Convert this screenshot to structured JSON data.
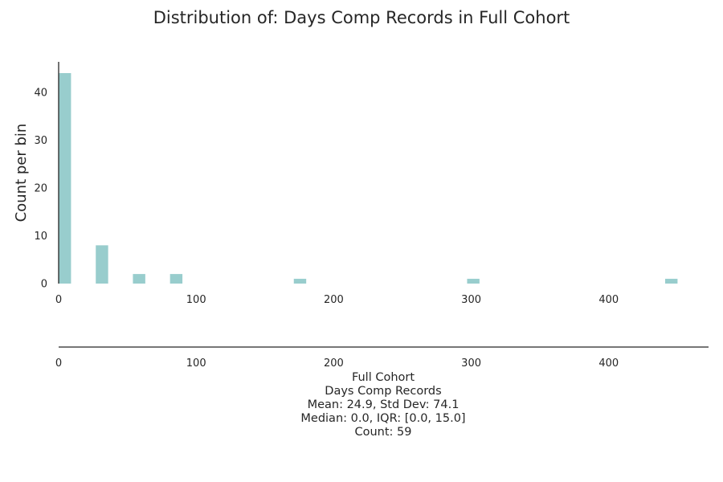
{
  "chart_data": {
    "type": "bar",
    "title": "Distribution of: Days Comp Records in Full Cohort",
    "xlabel": "",
    "ylabel": "Count per bin",
    "xlim": [
      0,
      475
    ],
    "ylim": [
      0,
      46
    ],
    "xticks": [
      0,
      100,
      200,
      300,
      400
    ],
    "yticks": [
      0,
      10,
      20,
      30,
      40
    ],
    "bin_width": 9,
    "bars": [
      {
        "x0": 0,
        "x1": 9,
        "count": 44
      },
      {
        "x0": 27,
        "x1": 36,
        "count": 8
      },
      {
        "x0": 54,
        "x1": 63,
        "count": 2
      },
      {
        "x0": 81,
        "x1": 90,
        "count": 2
      },
      {
        "x0": 171,
        "x1": 180,
        "count": 1
      },
      {
        "x0": 297,
        "x1": 306,
        "count": 1
      },
      {
        "x0": 441,
        "x1": 450,
        "count": 1
      }
    ],
    "grid": false,
    "rug_axis_xticks": [
      0,
      100,
      200,
      300,
      400
    ]
  },
  "stats": {
    "cohort": "Full Cohort",
    "variable": "Days Comp Records",
    "mean_std": "Mean: 24.9, Std Dev: 74.1",
    "median_iqr": "Median: 0.0, IQR: [0.0, 15.0]",
    "count": "Count: 59"
  },
  "colors": {
    "bar": "#8fc9c9",
    "axis": "#262626",
    "text": "#262626"
  }
}
